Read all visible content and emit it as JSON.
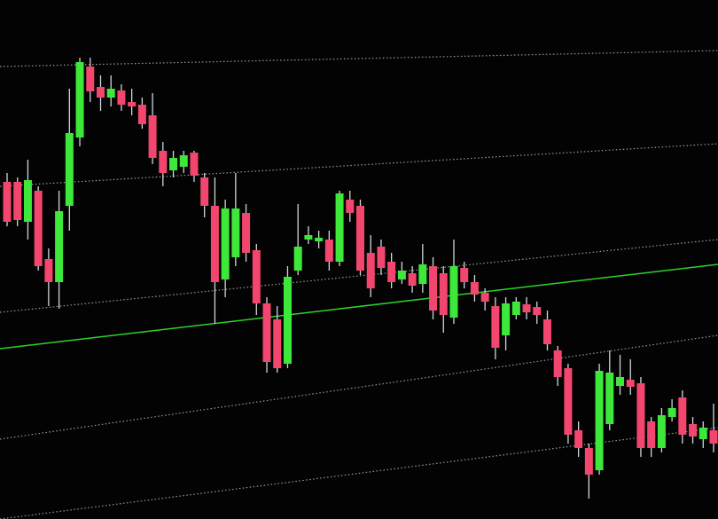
{
  "chart_data": {
    "type": "candlestick",
    "title": "",
    "xlabel": "",
    "ylabel": "",
    "grid": true,
    "grid_style": "dotted",
    "ylim": [
      0,
      117
    ],
    "colors": {
      "up": "#3ee83a",
      "down": "#f2466e",
      "wick": "#cfd6dc",
      "price_line": "#2fd12a",
      "grid": "#c8ccd0",
      "background": "#030303"
    },
    "candles": [
      {
        "o": 76,
        "c": 67,
        "h": 78,
        "l": 66
      },
      {
        "o": 76,
        "c": 67.4,
        "h": 77,
        "l": 66
      },
      {
        "o": 67,
        "c": 76.4,
        "h": 81,
        "l": 63
      },
      {
        "o": 74,
        "c": 57,
        "h": 75,
        "l": 56
      },
      {
        "o": 58.6,
        "c": 53.4,
        "h": 61,
        "l": 48
      },
      {
        "o": 53.4,
        "c": 69.4,
        "h": 74,
        "l": 47.4
      },
      {
        "o": 70.6,
        "c": 87,
        "h": 97,
        "l": 65
      },
      {
        "o": 86,
        "c": 103,
        "h": 104,
        "l": 84
      },
      {
        "o": 102,
        "c": 96.4,
        "h": 104,
        "l": 94
      },
      {
        "o": 97.4,
        "c": 95,
        "h": 100,
        "l": 92
      },
      {
        "o": 95,
        "c": 97,
        "h": 100,
        "l": 93
      },
      {
        "o": 96.6,
        "c": 93.4,
        "h": 98,
        "l": 92
      },
      {
        "o": 94,
        "c": 93,
        "h": 97,
        "l": 91
      },
      {
        "o": 93.4,
        "c": 89,
        "h": 95,
        "l": 88
      },
      {
        "o": 91,
        "c": 81.4,
        "h": 96,
        "l": 80
      },
      {
        "o": 83,
        "c": 78,
        "h": 85,
        "l": 75
      },
      {
        "o": 78.6,
        "c": 81.4,
        "h": 83,
        "l": 77
      },
      {
        "o": 79.4,
        "c": 82,
        "h": 83,
        "l": 78
      },
      {
        "o": 82.6,
        "c": 77.4,
        "h": 83,
        "l": 76
      },
      {
        "o": 77,
        "c": 70.6,
        "h": 78,
        "l": 68
      },
      {
        "o": 70.6,
        "c": 53.4,
        "h": 77,
        "l": 44
      },
      {
        "o": 54,
        "c": 70,
        "h": 72,
        "l": 50
      },
      {
        "o": 59,
        "c": 70,
        "h": 78,
        "l": 57
      },
      {
        "o": 69,
        "c": 60,
        "h": 71,
        "l": 58
      },
      {
        "o": 60.6,
        "c": 48.6,
        "h": 62,
        "l": 46
      },
      {
        "o": 48.6,
        "c": 35.4,
        "h": 50,
        "l": 33
      },
      {
        "o": 45,
        "c": 34,
        "h": 48,
        "l": 33
      },
      {
        "o": 35,
        "c": 54.6,
        "h": 57,
        "l": 34
      },
      {
        "o": 56,
        "c": 61.4,
        "h": 71,
        "l": 55
      },
      {
        "o": 63,
        "c": 64,
        "h": 66,
        "l": 62
      },
      {
        "o": 62.6,
        "c": 63.4,
        "h": 65,
        "l": 61
      },
      {
        "o": 63,
        "c": 58,
        "h": 65,
        "l": 56
      },
      {
        "o": 58,
        "c": 73.4,
        "h": 74,
        "l": 57
      },
      {
        "o": 72,
        "c": 69,
        "h": 74,
        "l": 67
      },
      {
        "o": 70.6,
        "c": 56,
        "h": 72,
        "l": 55
      },
      {
        "o": 60,
        "c": 52,
        "h": 64,
        "l": 50
      },
      {
        "o": 61.4,
        "c": 56.6,
        "h": 63,
        "l": 55
      },
      {
        "o": 58,
        "c": 53.4,
        "h": 60,
        "l": 52
      },
      {
        "o": 54,
        "c": 56,
        "h": 58,
        "l": 53
      },
      {
        "o": 55.4,
        "c": 52.6,
        "h": 57,
        "l": 51
      },
      {
        "o": 53,
        "c": 57.4,
        "h": 62,
        "l": 51
      },
      {
        "o": 57,
        "c": 47,
        "h": 59,
        "l": 45
      },
      {
        "o": 55.4,
        "c": 46,
        "h": 57,
        "l": 42
      },
      {
        "o": 45.4,
        "c": 57,
        "h": 63,
        "l": 44
      },
      {
        "o": 56.6,
        "c": 53.4,
        "h": 58,
        "l": 52
      },
      {
        "o": 53.4,
        "c": 50.6,
        "h": 55,
        "l": 49
      },
      {
        "o": 51,
        "c": 49,
        "h": 52,
        "l": 47
      },
      {
        "o": 48,
        "c": 38.6,
        "h": 50,
        "l": 36
      },
      {
        "o": 41.4,
        "c": 48.6,
        "h": 50,
        "l": 38
      },
      {
        "o": 46,
        "c": 49,
        "h": 50,
        "l": 45
      },
      {
        "o": 48.4,
        "c": 46.6,
        "h": 50,
        "l": 45
      },
      {
        "o": 47.8,
        "c": 46,
        "h": 49,
        "l": 44
      },
      {
        "o": 45,
        "c": 39.4,
        "h": 47,
        "l": 38
      },
      {
        "o": 38,
        "c": 32,
        "h": 39,
        "l": 30
      },
      {
        "o": 34,
        "c": 19,
        "h": 35,
        "l": 17
      },
      {
        "o": 20,
        "c": 16,
        "h": 22,
        "l": 14
      },
      {
        "o": 16,
        "c": 10,
        "h": 17,
        "l": 4.6
      },
      {
        "o": 11,
        "c": 33.4,
        "h": 35,
        "l": 10
      },
      {
        "o": 21.4,
        "c": 33,
        "h": 38,
        "l": 20
      },
      {
        "o": 30,
        "c": 32,
        "h": 37,
        "l": 28
      },
      {
        "o": 31.4,
        "c": 29.8,
        "h": 36,
        "l": 28
      },
      {
        "o": 30.6,
        "c": 16,
        "h": 32,
        "l": 14
      },
      {
        "o": 22,
        "c": 16,
        "h": 23,
        "l": 14
      },
      {
        "o": 16,
        "c": 23.4,
        "h": 25,
        "l": 15
      },
      {
        "o": 23,
        "c": 25,
        "h": 27,
        "l": 22
      },
      {
        "o": 27.4,
        "c": 19,
        "h": 29,
        "l": 17
      },
      {
        "o": 21.4,
        "c": 18.6,
        "h": 23,
        "l": 17
      },
      {
        "o": 18,
        "c": 20.6,
        "h": 22,
        "l": 16
      },
      {
        "o": 20,
        "c": 17,
        "h": 26,
        "l": 15
      }
    ]
  }
}
